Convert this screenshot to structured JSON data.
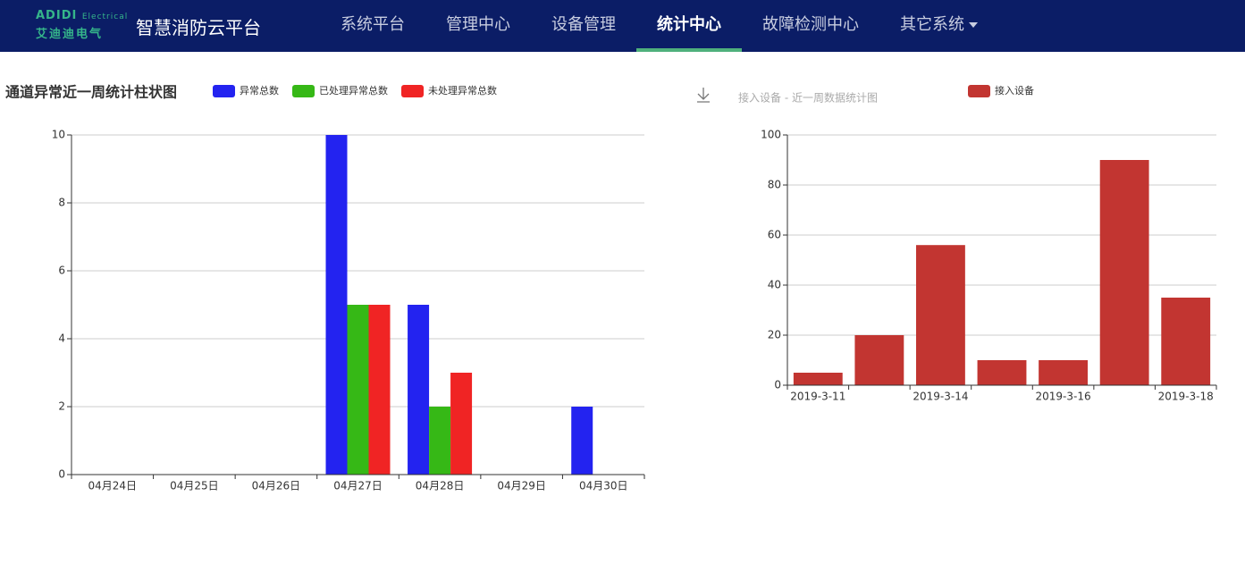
{
  "header": {
    "logo_mark": "ADIDI",
    "logo_sub": "Electrical",
    "logo_cn": "艾迪迪电气",
    "title": "智慧消防云平台",
    "menu": [
      {
        "label": "系统平台",
        "active": false
      },
      {
        "label": "管理中心",
        "active": false
      },
      {
        "label": "设备管理",
        "active": false
      },
      {
        "label": "统计中心",
        "active": true
      },
      {
        "label": "故障检测中心",
        "active": false
      },
      {
        "label": "其它系统",
        "active": false,
        "dropdown": true
      }
    ]
  },
  "chart_data": [
    {
      "type": "bar",
      "title": "通道异常近一周统计柱状图",
      "categories": [
        "04月24日",
        "04月25日",
        "04月26日",
        "04月27日",
        "04月28日",
        "04月29日",
        "04月30日"
      ],
      "series": [
        {
          "name": "异常总数",
          "color": "#2323f0",
          "values": [
            0,
            0,
            0,
            10,
            5,
            0,
            2
          ]
        },
        {
          "name": "已处理异常总数",
          "color": "#36b816",
          "values": [
            0,
            0,
            0,
            5,
            2,
            0,
            0
          ]
        },
        {
          "name": "未处理异常总数",
          "color": "#f02424",
          "values": [
            0,
            0,
            0,
            5,
            3,
            0,
            0
          ]
        }
      ],
      "ylim": [
        0,
        10
      ],
      "yticks": [
        0,
        2,
        4,
        6,
        8,
        10
      ],
      "grid": true
    },
    {
      "type": "bar",
      "title": "接入设备 - 近一周数据统计图",
      "categories": [
        "2019-3-11",
        null,
        "2019-3-14",
        null,
        "2019-3-16",
        null,
        "2019-3-18"
      ],
      "series": [
        {
          "name": "接入设备",
          "color": "#c23531",
          "values": [
            5,
            20,
            56,
            10,
            10,
            90,
            35
          ]
        }
      ],
      "ylim": [
        0,
        100
      ],
      "yticks": [
        0,
        20,
        40,
        60,
        80,
        100
      ],
      "grid": true
    }
  ]
}
